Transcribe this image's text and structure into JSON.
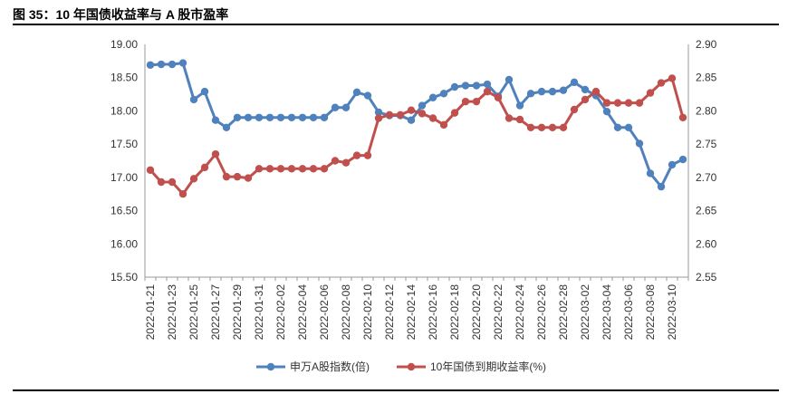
{
  "figure": {
    "title": "图 35：10 年国债收益率与 A 股市盈率"
  },
  "chart_data": {
    "type": "line",
    "x": [
      "2022-01-21",
      "2022-01-22",
      "2022-01-23",
      "2022-01-24",
      "2022-01-25",
      "2022-01-26",
      "2022-01-27",
      "2022-01-28",
      "2022-01-29",
      "2022-01-30",
      "2022-01-31",
      "2022-02-01",
      "2022-02-02",
      "2022-02-03",
      "2022-02-04",
      "2022-02-05",
      "2022-02-06",
      "2022-02-07",
      "2022-02-08",
      "2022-02-09",
      "2022-02-10",
      "2022-02-11",
      "2022-02-12",
      "2022-02-13",
      "2022-02-14",
      "2022-02-15",
      "2022-02-16",
      "2022-02-17",
      "2022-02-18",
      "2022-02-19",
      "2022-02-20",
      "2022-02-21",
      "2022-02-22",
      "2022-02-23",
      "2022-02-24",
      "2022-02-25",
      "2022-02-26",
      "2022-02-27",
      "2022-02-28",
      "2022-03-01",
      "2022-03-02",
      "2022-03-03",
      "2022-03-04",
      "2022-03-05",
      "2022-03-06",
      "2022-03-07",
      "2022-03-08",
      "2022-03-09",
      "2022-03-10",
      "2022-03-11"
    ],
    "x_tick_labels": [
      "2022-01-21",
      "2022-01-23",
      "2022-01-25",
      "2022-01-27",
      "2022-01-29",
      "2022-01-31",
      "2022-02-02",
      "2022-02-04",
      "2022-02-06",
      "2022-02-08",
      "2022-02-10",
      "2022-02-12",
      "2022-02-14",
      "2022-02-16",
      "2022-02-18",
      "2022-02-20",
      "2022-02-22",
      "2022-02-24",
      "2022-02-26",
      "2022-02-28",
      "2022-03-02",
      "2022-03-04",
      "2022-03-06",
      "2022-03-08",
      "2022-03-10"
    ],
    "y_left": {
      "min": 15.5,
      "max": 19.0,
      "ticks": [
        "15.50",
        "16.00",
        "16.50",
        "17.00",
        "17.50",
        "18.00",
        "18.50",
        "19.00"
      ]
    },
    "y_right": {
      "min": 2.55,
      "max": 2.9,
      "ticks": [
        "2.55",
        "2.60",
        "2.65",
        "2.70",
        "2.75",
        "2.80",
        "2.85",
        "2.90"
      ]
    },
    "grid": false,
    "legend_position": "bottom",
    "series": [
      {
        "name": "申万A股指数(倍)",
        "axis": "left",
        "color": "#4f81bd",
        "values": [
          18.69,
          18.7,
          18.7,
          18.72,
          18.17,
          18.29,
          17.86,
          17.75,
          17.9,
          17.9,
          17.9,
          17.9,
          17.9,
          17.9,
          17.9,
          17.9,
          17.9,
          18.05,
          18.05,
          18.28,
          18.23,
          17.98,
          17.93,
          17.93,
          17.86,
          18.08,
          18.2,
          18.26,
          18.36,
          18.38,
          18.38,
          18.4,
          18.22,
          18.47,
          18.08,
          18.26,
          18.29,
          18.29,
          18.31,
          18.43,
          18.32,
          18.23,
          17.99,
          17.75,
          17.75,
          17.51,
          17.06,
          16.86,
          17.19,
          17.27
        ]
      },
      {
        "name": "10年国债到期收益率(%)",
        "axis": "right",
        "color": "#c0504d",
        "values": [
          2.711,
          2.693,
          2.693,
          2.675,
          2.698,
          2.715,
          2.735,
          2.701,
          2.701,
          2.699,
          2.713,
          2.713,
          2.713,
          2.713,
          2.713,
          2.713,
          2.713,
          2.725,
          2.722,
          2.733,
          2.733,
          2.789,
          2.794,
          2.794,
          2.801,
          2.796,
          2.789,
          2.779,
          2.797,
          2.814,
          2.814,
          2.829,
          2.82,
          2.789,
          2.787,
          2.775,
          2.775,
          2.775,
          2.775,
          2.802,
          2.817,
          2.829,
          2.812,
          2.812,
          2.812,
          2.812,
          2.827,
          2.842,
          2.849,
          2.79
        ]
      }
    ]
  }
}
